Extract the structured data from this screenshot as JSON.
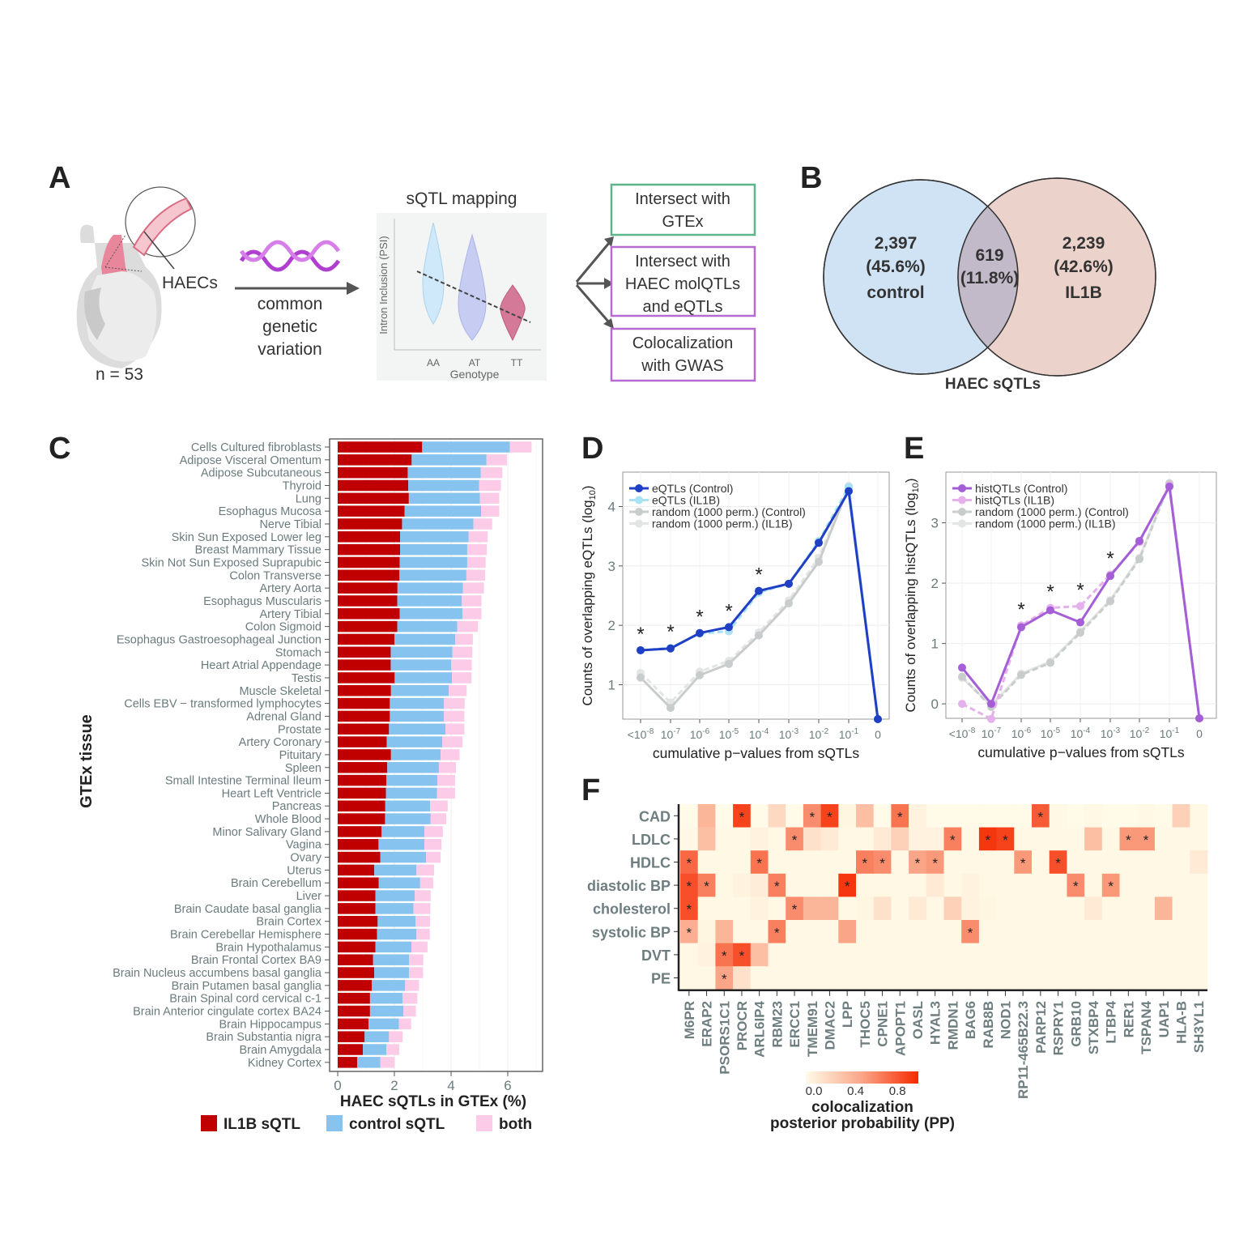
{
  "panel_labels": {
    "a": "A",
    "b": "B",
    "c": "C",
    "d": "D",
    "e": "E",
    "f": "F"
  },
  "panel_a": {
    "haecs_label": "HAECs",
    "sample_size": "n = 53",
    "arrow_label": [
      "common",
      "genetic",
      "variation"
    ],
    "mapping_title": "sQTL mapping",
    "violin_ylabel": "Intron Inclusion (PSI)",
    "violin_xlabel": "Genotype",
    "genotypes": [
      "AA",
      "AT",
      "TT"
    ],
    "boxes": [
      {
        "lines": [
          "Intersect with",
          "GTEx"
        ],
        "color": "#5fb58a"
      },
      {
        "lines": [
          "Intersect with",
          "HAEC molQTLs",
          "and eQTLs"
        ],
        "color": "#b76ad0"
      },
      {
        "lines": [
          "Colocalization",
          "with GWAS"
        ],
        "color": "#b76ad0"
      }
    ]
  },
  "panel_b": {
    "title": "HAEC sQTLs",
    "left": {
      "count": "2,397",
      "pct": "(45.6%)",
      "label": "control",
      "color": "#cfe3f5"
    },
    "overlap": {
      "count": "619",
      "pct": "(11.8%)"
    },
    "right": {
      "count": "2,239",
      "pct": "(42.6%)",
      "label": "IL1B",
      "color": "#e8cbc3"
    }
  },
  "chart_data": [
    {
      "panel": "C",
      "type": "bar",
      "orientation": "horizontal",
      "stacked": true,
      "xlabel": "HAEC sQTLs in GTEx (%)",
      "ylabel": "GTEx tissue",
      "xlim": [
        0,
        7.2
      ],
      "xticks": [
        "0",
        "2",
        "4",
        "6"
      ],
      "legend_position": "bottom",
      "categories": [
        "Cells Cultured fibroblasts",
        "Adipose Visceral Omentum",
        "Adipose Subcutaneous",
        "Thyroid",
        "Lung",
        "Esophagus Mucosa",
        "Nerve Tibial",
        "Skin Sun Exposed Lower leg",
        "Breast Mammary Tissue",
        "Skin Not Sun Exposed Suprapubic",
        "Colon Transverse",
        "Artery Aorta",
        "Esophagus Muscularis",
        "Artery Tibial",
        "Colon Sigmoid",
        "Esophagus Gastroesophageal Junction",
        "Stomach",
        "Heart Atrial Appendage",
        "Testis",
        "Muscle Skeletal",
        "Cells EBV − transformed lymphocytes",
        "Adrenal Gland",
        "Prostate",
        "Artery Coronary",
        "Pituitary",
        "Spleen",
        "Small Intestine Terminal Ileum",
        "Heart Left Ventricle",
        "Pancreas",
        "Whole Blood",
        "Minor Salivary Gland",
        "Vagina",
        "Ovary",
        "Uterus",
        "Brain Cerebellum",
        "Liver",
        "Brain Caudate basal ganglia",
        "Brain Cortex",
        "Brain Cerebellar Hemisphere",
        "Brain Hypothalamus",
        "Brain Frontal Cortex BA9",
        "Brain Nucleus accumbens basal ganglia",
        "Brain Putamen basal ganglia",
        "Brain Spinal cord cervical c-1",
        "Brain Anterior cingulate cortex BA24",
        "Brain Hippocampus",
        "Brain Substantia nigra",
        "Brain Amygdala",
        "Kidney Cortex"
      ],
      "series": [
        {
          "name": "IL1B sQTL",
          "color": "#c00000",
          "values": [
            2.98,
            2.61,
            2.47,
            2.49,
            2.51,
            2.36,
            2.27,
            2.2,
            2.2,
            2.19,
            2.18,
            2.11,
            2.1,
            2.19,
            2.1,
            2.0,
            1.87,
            1.87,
            2.01,
            1.88,
            1.84,
            1.84,
            1.81,
            1.73,
            1.88,
            1.75,
            1.72,
            1.7,
            1.68,
            1.67,
            1.55,
            1.44,
            1.5,
            1.29,
            1.45,
            1.33,
            1.33,
            1.41,
            1.39,
            1.33,
            1.25,
            1.29,
            1.2,
            1.14,
            1.14,
            1.09,
            0.95,
            0.89,
            0.69
          ]
        },
        {
          "name": "control sQTL",
          "color": "#86c3ee",
          "values": [
            3.09,
            2.64,
            2.58,
            2.5,
            2.51,
            2.7,
            2.52,
            2.42,
            2.37,
            2.38,
            2.36,
            2.31,
            2.28,
            2.21,
            2.12,
            2.15,
            2.18,
            2.13,
            2.02,
            2.04,
            1.91,
            1.91,
            1.99,
            1.96,
            1.75,
            1.82,
            1.8,
            1.8,
            1.58,
            1.61,
            1.51,
            1.62,
            1.62,
            1.49,
            1.46,
            1.39,
            1.34,
            1.34,
            1.39,
            1.27,
            1.27,
            1.23,
            1.18,
            1.15,
            1.18,
            1.07,
            0.86,
            0.83,
            0.81
          ]
        },
        {
          "name": "both",
          "color": "#fccbe8",
          "values": [
            0.77,
            0.72,
            0.76,
            0.77,
            0.68,
            0.64,
            0.66,
            0.67,
            0.69,
            0.65,
            0.66,
            0.74,
            0.69,
            0.67,
            0.73,
            0.62,
            0.7,
            0.73,
            0.69,
            0.63,
            0.73,
            0.72,
            0.67,
            0.71,
            0.67,
            0.6,
            0.62,
            0.64,
            0.62,
            0.55,
            0.65,
            0.6,
            0.51,
            0.62,
            0.46,
            0.56,
            0.6,
            0.51,
            0.47,
            0.57,
            0.5,
            0.49,
            0.49,
            0.52,
            0.44,
            0.43,
            0.48,
            0.45,
            0.51
          ]
        }
      ]
    },
    {
      "panel": "D",
      "type": "line",
      "xlabel": "cumulative p−values from sQTLs",
      "ylabel": "Counts of overlapping eQTLs (log",
      "ylabel_sub": "10",
      "x": [
        "<10^-8",
        "10^-7",
        "10^-6",
        "10^-5",
        "10^-4",
        "10^-3",
        "10^-2",
        "10^-1",
        "0"
      ],
      "xtick_base": [
        "<10",
        "10",
        "10",
        "10",
        "10",
        "10",
        "10",
        "10",
        "0"
      ],
      "xtick_exp": [
        "-8",
        "-7",
        "-6",
        "-5",
        "-4",
        "-3",
        "-2",
        "-1",
        ""
      ],
      "ylim": [
        0.42,
        4.58
      ],
      "yticks": [
        1,
        2,
        3,
        4
      ],
      "grid": true,
      "legend_position": "top-left",
      "significance_marker": "*",
      "significant_points": [
        0,
        1,
        2,
        3,
        4
      ],
      "series": [
        {
          "name": "eQTLs (Control)",
          "color": "#1f3fc4",
          "dash": false,
          "values": [
            1.58,
            1.61,
            1.87,
            1.97,
            2.58,
            2.7,
            3.39,
            4.26,
            0.42
          ]
        },
        {
          "name": "eQTLs (IL1B)",
          "color": "#a8e2f4",
          "dash": true,
          "values": [
            1.58,
            1.62,
            1.86,
            1.9,
            2.55,
            2.7,
            3.42,
            4.33,
            0.42
          ]
        },
        {
          "name": "random (1000 perm.) (Control)",
          "color": "#c9cccc",
          "dash": false,
          "values": [
            1.12,
            0.61,
            1.16,
            1.35,
            1.83,
            2.37,
            3.07,
            4.33,
            0.42
          ]
        },
        {
          "name": "random (1000 perm.) (IL1B)",
          "color": "#e3e5e5",
          "dash": true,
          "values": [
            1.2,
            0.7,
            1.22,
            1.4,
            1.88,
            2.42,
            3.14,
            4.35,
            0.42
          ]
        }
      ]
    },
    {
      "panel": "E",
      "type": "line",
      "xlabel": "cumulative p−values from sQTLs",
      "ylabel": "Counts of overlapping histQTLs (log",
      "ylabel_sub": "10",
      "x": [
        "<10^-8",
        "10^-7",
        "10^-6",
        "10^-5",
        "10^-4",
        "10^-3",
        "10^-2",
        "10^-1",
        "0"
      ],
      "xtick_base": [
        "<10",
        "10",
        "10",
        "10",
        "10",
        "10",
        "10",
        "10",
        "0"
      ],
      "xtick_exp": [
        "-8",
        "-7",
        "-6",
        "-5",
        "-4",
        "-3",
        "-2",
        "-1",
        ""
      ],
      "ylim": [
        -0.24,
        3.84
      ],
      "yticks": [
        0,
        1,
        2,
        3
      ],
      "grid": true,
      "legend_position": "top-left",
      "significance_marker": "*",
      "significant_points": [
        2,
        3,
        4,
        5
      ],
      "series": [
        {
          "name": "histQTLs (Control)",
          "color": "#a55fd6",
          "dash": false,
          "values": [
            0.6,
            0.0,
            1.27,
            1.55,
            1.35,
            2.12,
            2.7,
            3.6,
            -0.24
          ]
        },
        {
          "name": "histQTLs (IL1B)",
          "color": "#e6b0ec",
          "dash": true,
          "values": [
            0.0,
            -0.25,
            1.3,
            1.59,
            1.62,
            2.14,
            2.68,
            3.62,
            -0.24
          ]
        },
        {
          "name": "random (1000 perm.) (Control)",
          "color": "#c9cccc",
          "dash": true,
          "values": [
            0.45,
            -0.05,
            0.48,
            0.68,
            1.18,
            1.7,
            2.4,
            3.65,
            -0.24
          ]
        },
        {
          "name": "random (1000 perm.) (IL1B)",
          "color": "#e3e5e5",
          "dash": false,
          "values": [
            0.43,
            -0.02,
            0.5,
            0.7,
            1.2,
            1.72,
            2.42,
            3.66,
            -0.24
          ]
        }
      ]
    },
    {
      "panel": "F",
      "type": "heatmap",
      "colorbar_title": [
        "colocalization",
        "posterior probability (PP)"
      ],
      "colorbar_ticks": [
        "0.0",
        "0.4",
        "0.8"
      ],
      "colorbar_range": [
        0,
        1
      ],
      "color_low": "#fffbe8",
      "color_high": "#f52a00",
      "significance_marker": "*",
      "rows": [
        "CAD",
        "LDLC",
        "HDLC",
        "diastolic BP",
        "cholesterol",
        "systolic BP",
        "DVT",
        "PE"
      ],
      "columns": [
        "M6PR",
        "ERAP2",
        "PSORS1C1",
        "PROCR",
        "ARL6IP4",
        "RBM23",
        "ERCC1",
        "TMEM91",
        "DMAC2",
        "LPP",
        "THOC5",
        "CPNE1",
        "APOPT1",
        "OASL",
        "HYAL3",
        "RMDN1",
        "BAG6",
        "RAB8B",
        "NOD1",
        "RP11-465B22.3",
        "PARP12",
        "RSPRY1",
        "GRB10",
        "STXBP4",
        "LTBP4",
        "RER1",
        "TSPAN4",
        "UAP1",
        "HLA-B",
        "SH3YL1"
      ],
      "values": [
        [
          0,
          0.4,
          0,
          0.9,
          0,
          0.2,
          0,
          0.6,
          0.9,
          0.03,
          0.35,
          0,
          0.7,
          0.05,
          0,
          0,
          0,
          0,
          0,
          0,
          0.8,
          0.02,
          0,
          0.02,
          0,
          0,
          0.02,
          0,
          0.25,
          0.02
        ],
        [
          0.02,
          0.35,
          0.02,
          0.02,
          0.05,
          0.02,
          0.6,
          0.15,
          0.1,
          0.02,
          0.02,
          0.1,
          0.25,
          0.05,
          0.05,
          0.65,
          0.02,
          0.95,
          0.9,
          0.02,
          0.02,
          0.02,
          0.02,
          0.35,
          0.02,
          0.55,
          0.55,
          0.02,
          0.02,
          0.02
        ],
        [
          0.75,
          0.02,
          0.02,
          0.02,
          0.7,
          0.02,
          0.02,
          0.02,
          0.02,
          0.02,
          0.65,
          0.6,
          0.02,
          0.5,
          0.55,
          0.02,
          0.02,
          0.02,
          0.02,
          0.55,
          0.02,
          0.85,
          0.02,
          0.02,
          0.02,
          0.02,
          0.02,
          0.02,
          0.02,
          0.1
        ],
        [
          0.85,
          0.65,
          0.02,
          0.05,
          0.08,
          0.65,
          0.02,
          0.02,
          0.02,
          0.95,
          0.02,
          0.02,
          0.02,
          0.02,
          0.1,
          0.02,
          0.05,
          0.02,
          0.02,
          0.02,
          0.02,
          0.02,
          0.6,
          0.02,
          0.55,
          0.02,
          0.02,
          0.02,
          0.02,
          0.02
        ],
        [
          0.85,
          0.02,
          0.02,
          0.02,
          0.05,
          0.02,
          0.6,
          0.4,
          0.4,
          0.02,
          0.03,
          0.15,
          0.02,
          0.1,
          0.02,
          0.25,
          0.05,
          0.03,
          0.02,
          0.02,
          0.02,
          0.02,
          0.02,
          0.1,
          0.02,
          0.02,
          0.02,
          0.4,
          0.02,
          0.02
        ],
        [
          0.45,
          0.03,
          0.4,
          0.02,
          0.02,
          0.65,
          0.02,
          0.02,
          0.02,
          0.5,
          0.02,
          0.02,
          0.02,
          0.02,
          0.02,
          0.02,
          0.6,
          0.02,
          0.02,
          0.02,
          0.02,
          0.02,
          0.02,
          0.02,
          0.02,
          0.02,
          0.02,
          0.02,
          0.02,
          0.02
        ],
        [
          0.02,
          0.05,
          0.7,
          0.85,
          0.35,
          0.02,
          0.02,
          0.02,
          0.02,
          0.02,
          0.02,
          0.02,
          0.02,
          0.02,
          0.02,
          0.02,
          0.02,
          0.02,
          0.02,
          0.02,
          0.02,
          0.02,
          0.02,
          0.02,
          0.02,
          0.02,
          0.02,
          0.02,
          0.02,
          0.02
        ],
        [
          0.02,
          0.02,
          0.5,
          0.15,
          0.02,
          0.02,
          0.02,
          0.02,
          0.02,
          0.02,
          0.02,
          0.02,
          0.02,
          0.02,
          0.02,
          0.02,
          0.02,
          0.02,
          0.02,
          0.02,
          0.02,
          0.02,
          0.02,
          0.02,
          0.02,
          0.02,
          0.02,
          0.02,
          0.02,
          0.02
        ]
      ],
      "significant": [
        [
          3,
          7,
          8,
          12,
          20
        ],
        [
          6,
          15,
          17,
          18,
          25,
          26
        ],
        [
          0,
          4,
          10,
          11,
          13,
          14,
          19,
          21
        ],
        [
          0,
          1,
          5,
          9,
          22,
          24
        ],
        [
          0,
          6
        ],
        [
          0,
          5,
          16
        ],
        [
          2,
          3
        ],
        [
          2
        ]
      ]
    }
  ]
}
